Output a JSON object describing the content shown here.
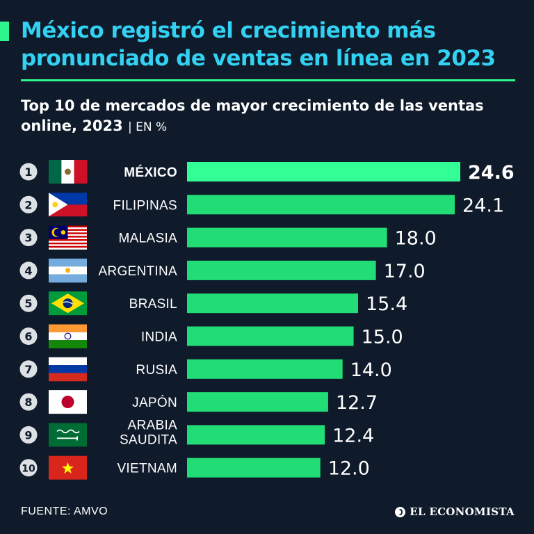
{
  "header": {
    "headline": "México registró el crecimiento más pronunciado de ventas en línea en 2023"
  },
  "chart_data": {
    "type": "bar",
    "orientation": "horizontal",
    "title": "Top 10 de mercados de mayor crecimiento de las ventas online, 2023",
    "unit_label": "| EN %",
    "categories": [
      "MÉXICO",
      "FILIPINAS",
      "MALASIA",
      "ARGENTINA",
      "BRASIL",
      "INDIA",
      "RUSIA",
      "JAPÓN",
      "ARABIA SAUDITA",
      "VIETNAM"
    ],
    "ranks": [
      "1",
      "2",
      "3",
      "4",
      "5",
      "6",
      "7",
      "8",
      "9",
      "10"
    ],
    "values": [
      24.6,
      24.1,
      18.0,
      17.0,
      15.4,
      15.0,
      14.0,
      12.7,
      12.4,
      12.0
    ],
    "value_labels": [
      "24.6",
      "24.1",
      "18.0",
      "17.0",
      "15.4",
      "15.0",
      "14.0",
      "12.7",
      "12.4",
      "12.0"
    ],
    "flags": [
      "mexico-flag-icon",
      "philippines-flag-icon",
      "malaysia-flag-icon",
      "argentina-flag-icon",
      "brazil-flag-icon",
      "india-flag-icon",
      "russia-flag-icon",
      "japan-flag-icon",
      "saudi-arabia-flag-icon",
      "vietnam-flag-icon"
    ],
    "highlight_index": 0,
    "xlim": [
      0,
      24.6
    ],
    "grid": false,
    "colors": {
      "bar": "#22dc75",
      "bar_highlight": "#33fd95",
      "rank_circle": "#dde1e6",
      "rank_text": "#0f1b2b"
    }
  },
  "footer": {
    "source": "FUENTE: AMVO",
    "brand": "EL ECONOMISTA"
  },
  "colors": {
    "background": "#0f1b2b",
    "headline": "#33d1f2",
    "accent": "#2ff58f"
  }
}
